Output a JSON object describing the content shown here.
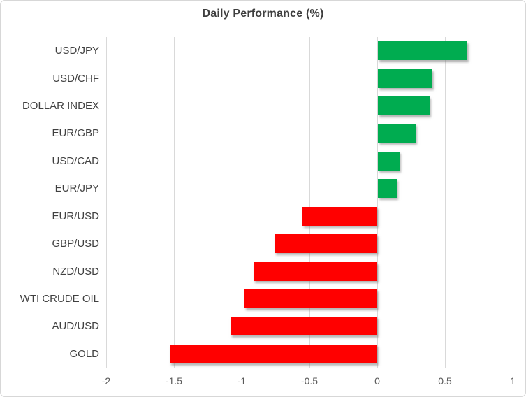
{
  "chart_data": {
    "type": "bar",
    "orientation": "horizontal",
    "title": "Daily Performance (%)",
    "categories": [
      "USD/JPY",
      "USD/CHF",
      "DOLLAR INDEX",
      "EUR/GBP",
      "USD/CAD",
      "EUR/JPY",
      "EUR/USD",
      "GBP/USD",
      "NZD/USD",
      "WTI CRUDE OIL",
      "AUD/USD",
      "GOLD"
    ],
    "values": [
      0.66,
      0.4,
      0.38,
      0.28,
      0.16,
      0.14,
      -0.55,
      -0.76,
      -0.91,
      -0.98,
      -1.08,
      -1.53
    ],
    "xlabel": "",
    "ylabel": "",
    "xlim": [
      -2,
      1
    ],
    "xticks": [
      -2,
      -1.5,
      -1,
      -0.5,
      0,
      0.5,
      1
    ],
    "xtick_labels": [
      "-2",
      "-1.5",
      "-1",
      "-0.5",
      "0",
      "0.5",
      "1"
    ],
    "grid": true,
    "legend": false,
    "colors": {
      "positive": "#00AC50",
      "negative": "#FF0000",
      "gridline": "#D9D9D9",
      "title_text": "#3F3F3F",
      "category_text": "#404040",
      "tick_text": "#595959"
    }
  }
}
